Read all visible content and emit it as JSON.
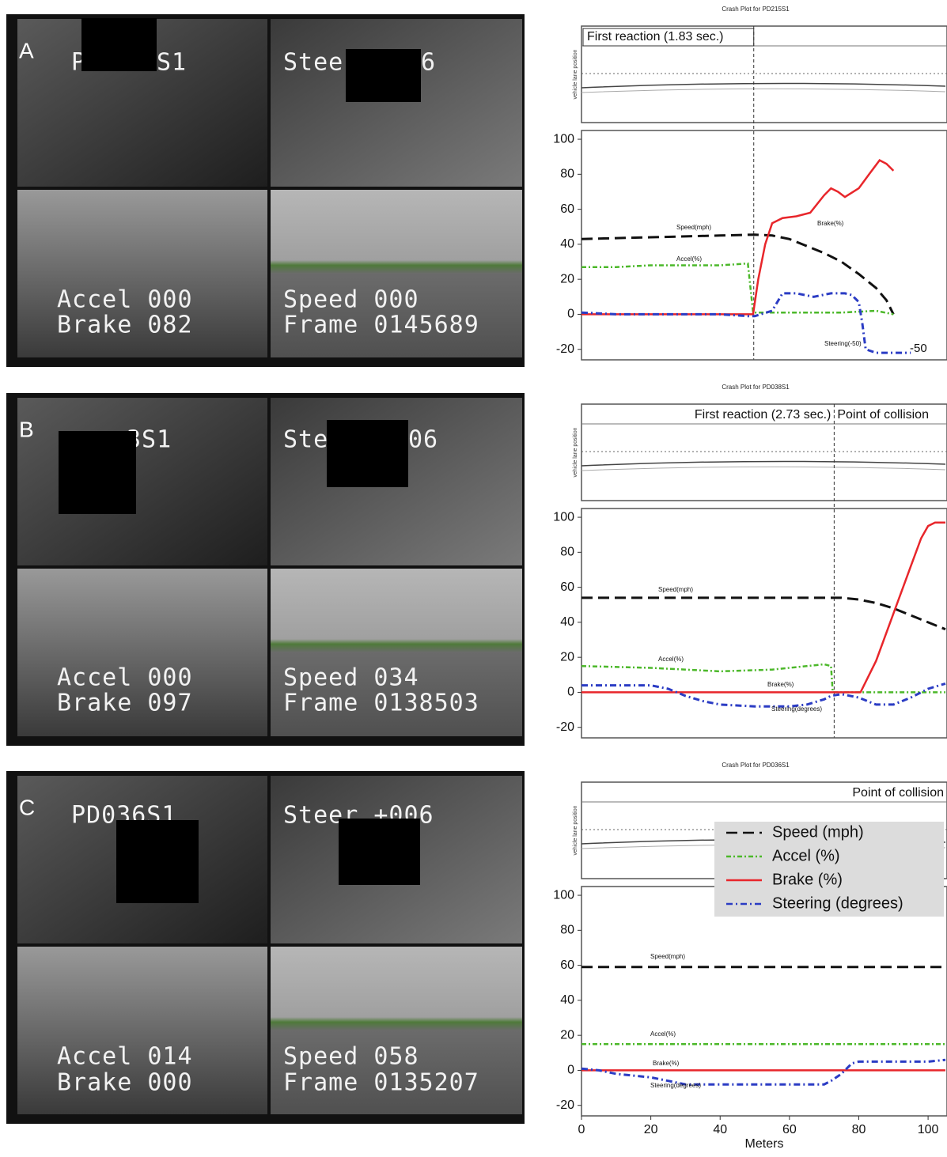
{
  "panels": [
    {
      "letter": "A",
      "video_texts": [
        "P",
        "S1",
        "Stee",
        "6",
        "Accel 000",
        "Brake 082",
        "Speed 000",
        "Frame 0145689"
      ]
    },
    {
      "letter": "B",
      "video_texts": [
        "3S1",
        "Ste",
        "06",
        "Accel 000",
        "Brake 097",
        "Speed 034",
        "Frame 0138503"
      ]
    },
    {
      "letter": "C",
      "video_texts": [
        "PD036S1",
        "Steer +006",
        "Accel 014",
        "Brake 000",
        "Speed 058",
        "Frame 0135207"
      ]
    }
  ],
  "chart_data": [
    {
      "type": "line",
      "title": "Crash Plot for PD215S1",
      "lane_axis_label": "vehicle lane position",
      "annotations": [
        "First reaction (1.83 sec.)"
      ],
      "reaction_x": 49.7,
      "xlim": [
        0,
        105
      ],
      "ylim": [
        -26,
        105
      ],
      "yticks": [
        -20,
        0,
        20,
        40,
        60,
        80,
        100
      ],
      "series": [
        {
          "label": "Speed(mph)",
          "color": "#111111",
          "x": [
            0,
            10,
            20,
            30,
            40,
            50,
            55,
            60,
            65,
            70,
            75,
            80,
            85,
            88,
            90
          ],
          "values": [
            43,
            43.5,
            44,
            44.5,
            45,
            45.5,
            45,
            43,
            39,
            35,
            30,
            23,
            15,
            8,
            0
          ]
        },
        {
          "label": "Accel(%)",
          "color": "#4cb82a",
          "x": [
            0,
            10,
            20,
            30,
            40,
            48,
            49.5,
            55,
            65,
            75,
            85,
            90
          ],
          "values": [
            27,
            27,
            28,
            28,
            28,
            29,
            1,
            1,
            1,
            1,
            2,
            0
          ]
        },
        {
          "label": "Brake(%)",
          "color": "#e8262b",
          "x": [
            0,
            48,
            49.5,
            51,
            53,
            55,
            58,
            62,
            66,
            70,
            72,
            74,
            76,
            80,
            83,
            86,
            88,
            90
          ],
          "values": [
            0,
            0,
            0,
            20,
            40,
            52,
            55,
            56,
            58,
            68,
            72,
            70,
            67,
            72,
            80,
            88,
            86,
            82
          ]
        },
        {
          "label": "Steering(-50)",
          "end_label": "-50",
          "color": "#2b3cc4",
          "x": [
            0,
            10,
            20,
            30,
            40,
            48,
            50,
            55,
            58,
            62,
            67,
            72,
            76,
            78,
            80,
            81,
            82,
            85,
            95
          ],
          "values": [
            1,
            0,
            0,
            0,
            0,
            -1,
            -1,
            2,
            12,
            12,
            10,
            12,
            12,
            11,
            7,
            -5,
            -20,
            -22,
            -22
          ]
        }
      ]
    },
    {
      "type": "line",
      "title": "Crash Plot for PD038S1",
      "lane_axis_label": "vehicle lane position",
      "annotations": [
        "First reaction (2.73 sec.)",
        "Point of collision"
      ],
      "reaction_x": 72.9,
      "xlim": [
        0,
        105
      ],
      "ylim": [
        -26,
        105
      ],
      "yticks": [
        -20,
        0,
        20,
        40,
        60,
        80,
        100
      ],
      "series": [
        {
          "label": "Speed(mph)",
          "color": "#111111",
          "x": [
            0,
            20,
            40,
            60,
            75,
            80,
            85,
            90,
            95,
            100,
            105
          ],
          "values": [
            54,
            54,
            54,
            54,
            54,
            53,
            51,
            48,
            44,
            40,
            36
          ]
        },
        {
          "label": "Accel(%)",
          "color": "#4cb82a",
          "x": [
            0,
            20,
            40,
            55,
            70,
            72,
            72.5,
            80,
            105
          ],
          "values": [
            15,
            14,
            12,
            13,
            16,
            15,
            0,
            0,
            0
          ]
        },
        {
          "label": "Brake(%)",
          "color": "#e8262b",
          "x": [
            0,
            80.5,
            85,
            90,
            95,
            98,
            100,
            102,
            105
          ],
          "values": [
            0,
            0,
            18,
            45,
            72,
            88,
            95,
            97,
            97
          ]
        },
        {
          "label": "Steering(degrees)",
          "color": "#2b3cc4",
          "x": [
            0,
            10,
            20,
            25,
            30,
            35,
            40,
            50,
            60,
            65,
            70,
            72,
            75,
            80,
            85,
            90,
            95,
            100,
            105
          ],
          "values": [
            4,
            4,
            4,
            2,
            -2,
            -5,
            -7,
            -8,
            -8,
            -7,
            -4,
            -2,
            -1,
            -3,
            -7,
            -7,
            -3,
            2,
            5
          ]
        }
      ]
    },
    {
      "type": "line",
      "title": "Crash Plot for PD036S1",
      "lane_axis_label": "vehicle lane position",
      "annotations": [
        "Point of collision"
      ],
      "xlim": [
        0,
        105
      ],
      "ylim": [
        -26,
        105
      ],
      "yticks": [
        -20,
        0,
        20,
        40,
        60,
        80,
        100
      ],
      "xticks": [
        0,
        20,
        40,
        60,
        80,
        100
      ],
      "xlabel": "Meters",
      "series": [
        {
          "name": "Speed (mph)",
          "label": "Speed(mph)",
          "color": "#111111",
          "x": [
            0,
            50,
            105
          ],
          "values": [
            59,
            59,
            59
          ]
        },
        {
          "name": "Accel (%)",
          "label": "Accel(%)",
          "color": "#4cb82a",
          "x": [
            0,
            50,
            105
          ],
          "values": [
            15,
            15,
            15
          ]
        },
        {
          "name": "Brake (%)",
          "label": "Brake(%)",
          "color": "#e8262b",
          "x": [
            0,
            105
          ],
          "values": [
            0,
            0
          ]
        },
        {
          "name": "Steering (degrees)",
          "label": "Steering(degrees)",
          "color": "#2b3cc4",
          "x": [
            0,
            5,
            10,
            15,
            20,
            25,
            30,
            40,
            50,
            60,
            70,
            72,
            75,
            78,
            80,
            90,
            100,
            105
          ],
          "values": [
            1,
            0,
            -2,
            -3,
            -4,
            -6,
            -8,
            -8,
            -8,
            -8,
            -8,
            -6,
            -2,
            4,
            5,
            5,
            5,
            6
          ]
        }
      ]
    }
  ]
}
